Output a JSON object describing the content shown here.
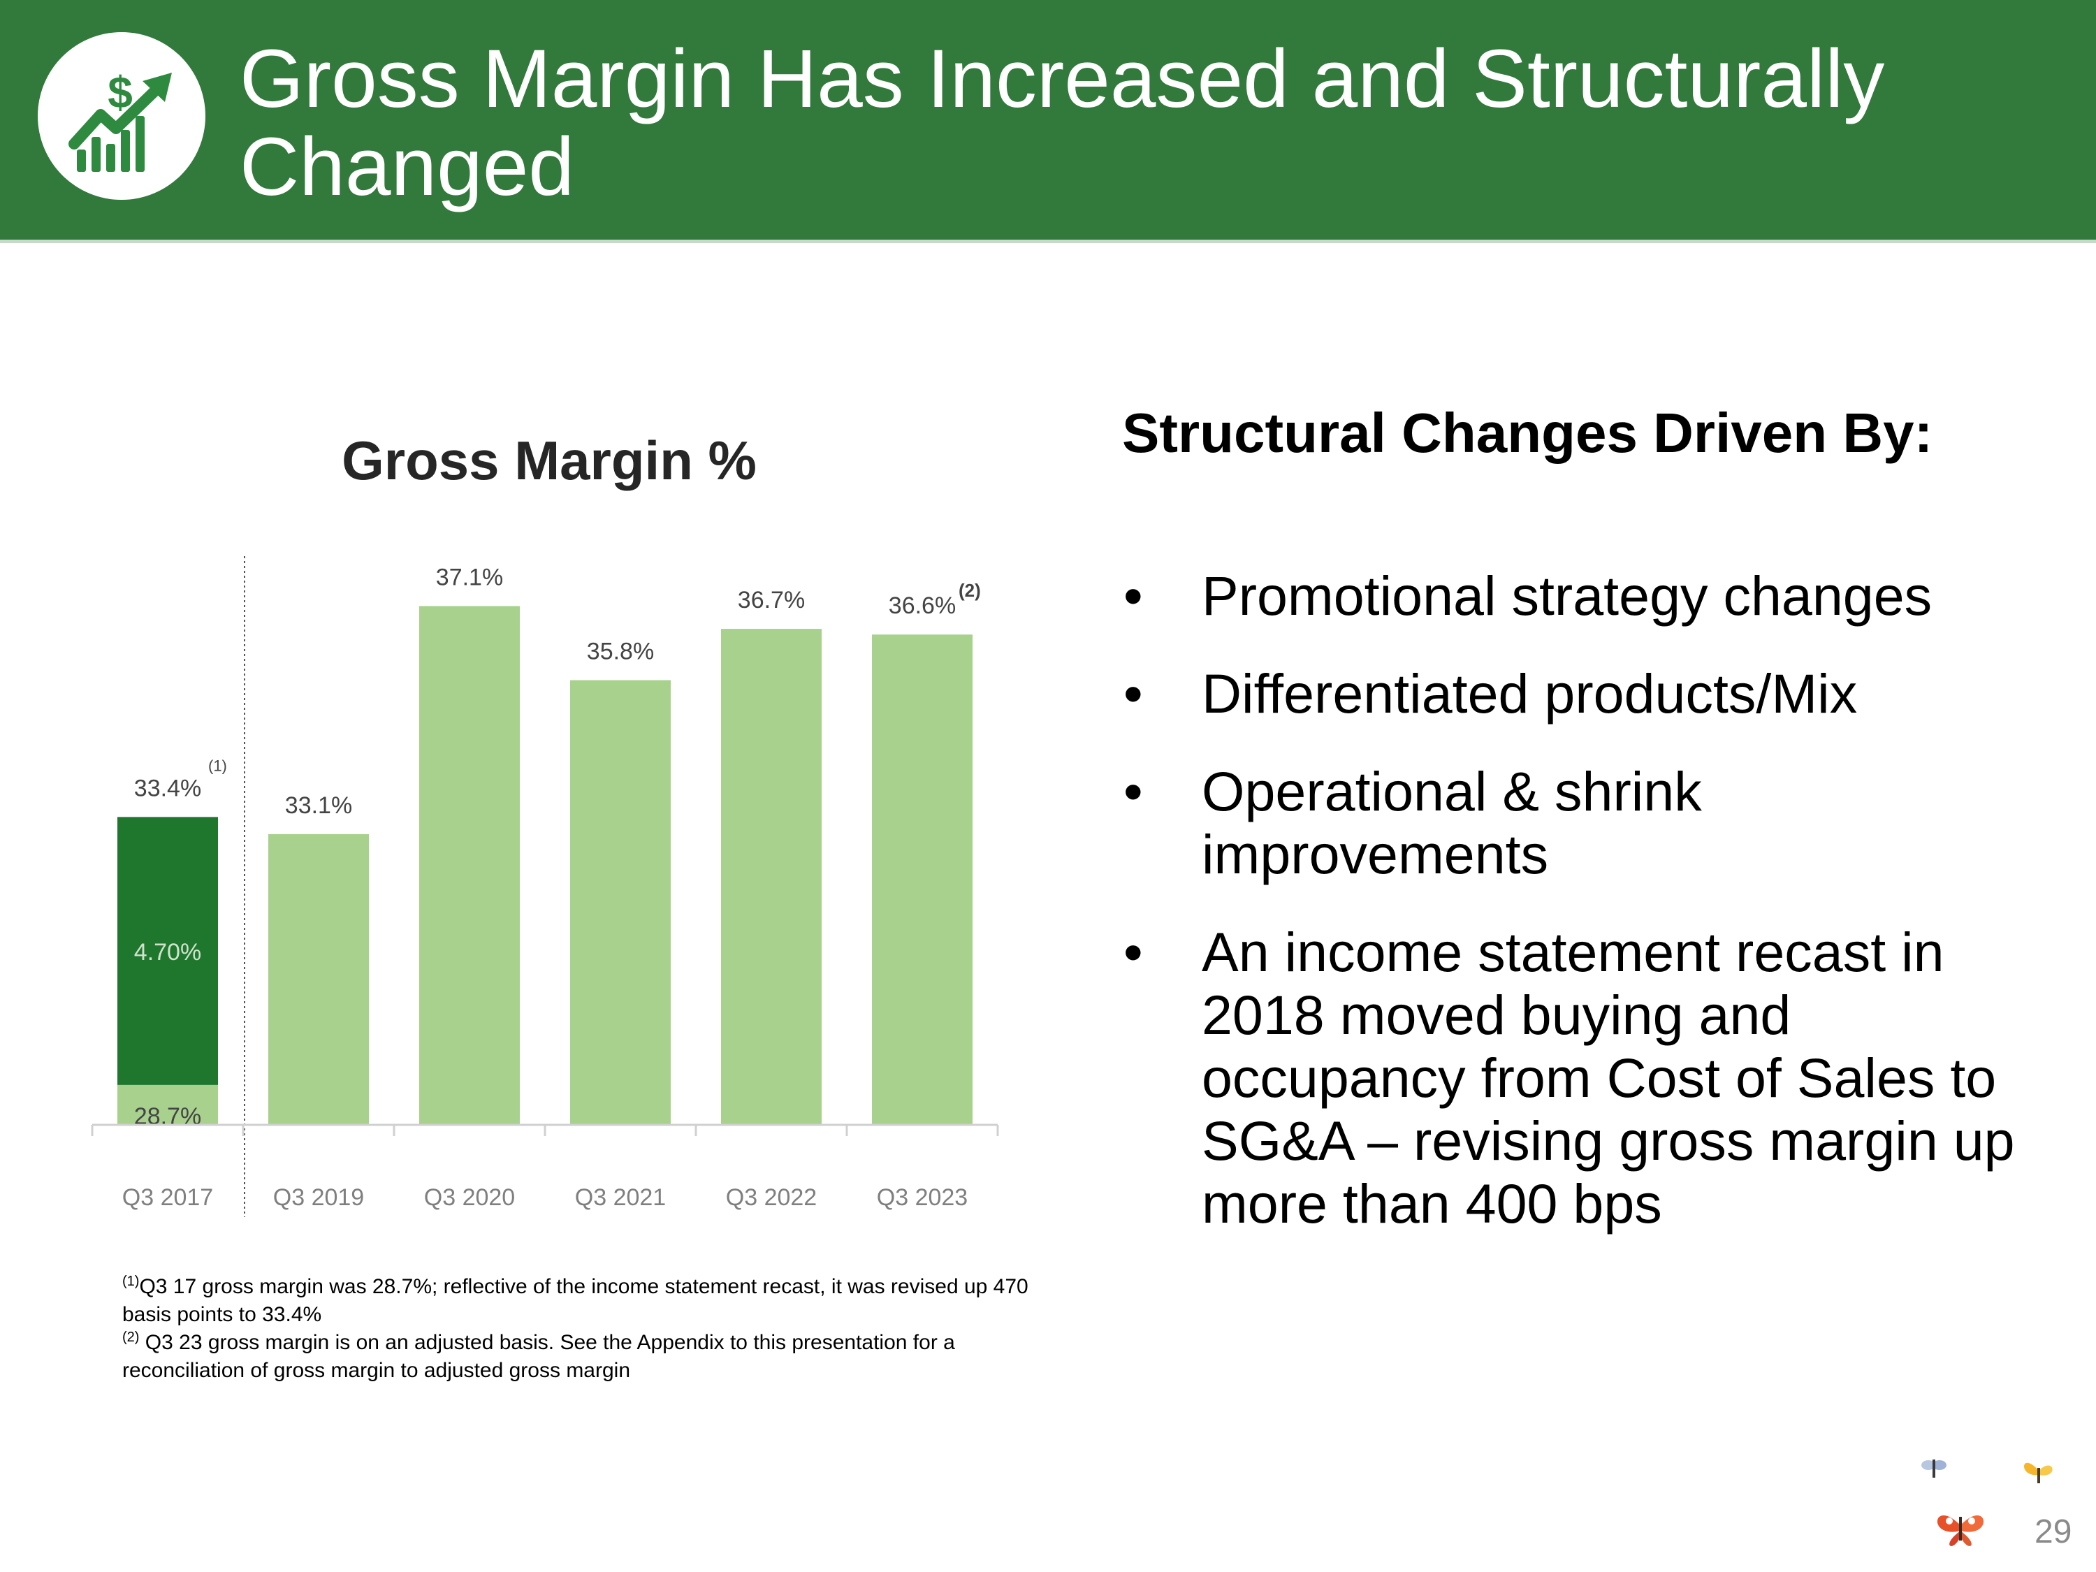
{
  "header": {
    "title_line1": "Gross Margin Has Increased and Structurally",
    "title_line2": "Changed",
    "logo_icon": "dollar-growth-chart-icon",
    "background_color": "#317a3b"
  },
  "chart_data": {
    "type": "bar",
    "title": "Gross Margin %",
    "categories": [
      "Q3 2017",
      "Q3 2019",
      "Q3 2020",
      "Q3 2021",
      "Q3 2022",
      "Q3 2023"
    ],
    "values": [
      33.4,
      33.1,
      37.1,
      35.8,
      36.7,
      36.6
    ],
    "value_labels": [
      "33.4%",
      "33.1%",
      "37.1%",
      "35.8%",
      "36.7%",
      "36.6%"
    ],
    "label_superscripts": [
      "(1)",
      "",
      "",
      "",
      "",
      "(2)"
    ],
    "stacked_first_bar": {
      "base_value": 28.7,
      "base_label": "28.7%",
      "increment_value": 4.7,
      "increment_label": "4.70%"
    },
    "bar_color": "#a8d18e",
    "highlight_color": "#1f772e",
    "ylim": [
      28.0,
      38.0
    ],
    "xlabel": "",
    "ylabel": "",
    "grid": false,
    "separator_after_first": true
  },
  "right": {
    "heading": "Structural Changes Driven By:",
    "bullet_symbol": "•",
    "bullets": [
      "Promotional strategy changes",
      "Differentiated products/Mix",
      "Operational  & shrink improvements",
      "An income statement recast in 2018 moved buying and occupancy from Cost of Sales to SG&A – revising gross margin up more than 400 bps"
    ]
  },
  "footnotes": {
    "note1_marker": "(1)",
    "note1_text": "Q3 17 gross margin was 28.7%; reflective of the income statement recast, it was revised up 470 basis points to 33.4%",
    "note2_marker": "(2)",
    "note2_text": " Q3 23 gross margin is on an adjusted basis.  See the Appendix to this presentation for a reconciliation of gross margin to adjusted gross margin"
  },
  "footer": {
    "page_number": "29",
    "decoration_icon": "butterflies-icon"
  }
}
